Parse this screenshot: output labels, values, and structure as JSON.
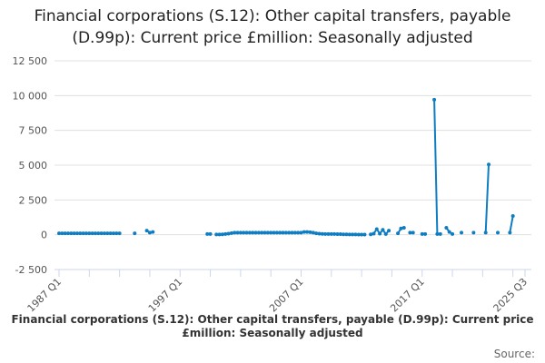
{
  "chart_data": {
    "type": "line",
    "title": "Financial corporations (S.12): Other capital transfers, payable (D.99p): Current price £million: Seasonally adjusted",
    "x_start": "1987 Q1",
    "x_end": "2025 Q3",
    "frequency": "quarterly",
    "x_tick_labels": [
      "1987 Q1",
      "1997 Q1",
      "2007 Q1",
      "2017 Q1",
      "2025 Q3"
    ],
    "ylim": [
      -2500,
      12500
    ],
    "y_ticks": [
      -2500,
      0,
      2500,
      5000,
      7500,
      10000,
      12500
    ],
    "y_tick_labels": [
      "-2 500",
      "0",
      "2 500",
      "5 000",
      "7 500",
      "10 000",
      "12 500"
    ],
    "grid": true,
    "series": [
      {
        "name": "Financial corporations (S.12): Other capital transfers, payable (D.99p): Current price £million: Seasonally adjusted",
        "color": "#0f7dc2",
        "values": [
          100,
          100,
          100,
          100,
          100,
          100,
          100,
          100,
          100,
          100,
          100,
          100,
          100,
          100,
          100,
          100,
          100,
          100,
          100,
          100,
          100,
          null,
          null,
          null,
          null,
          100,
          null,
          null,
          null,
          300,
          150,
          200,
          null,
          null,
          null,
          null,
          null,
          null,
          null,
          null,
          null,
          null,
          null,
          null,
          null,
          null,
          null,
          null,
          null,
          50,
          50,
          null,
          20,
          20,
          30,
          50,
          80,
          120,
          150,
          150,
          150,
          150,
          150,
          150,
          150,
          150,
          150,
          150,
          150,
          150,
          150,
          150,
          150,
          150,
          150,
          150,
          150,
          150,
          150,
          150,
          150,
          200,
          200,
          180,
          150,
          100,
          80,
          60,
          50,
          50,
          50,
          50,
          40,
          40,
          30,
          30,
          20,
          20,
          20,
          10,
          10,
          10,
          null,
          30,
          80,
          400,
          80,
          350,
          50,
          300,
          null,
          null,
          100,
          450,
          500,
          null,
          150,
          150,
          null,
          null,
          50,
          50,
          null,
          null,
          9700,
          50,
          50,
          null,
          500,
          200,
          50,
          null,
          null,
          150,
          null,
          null,
          null,
          150,
          null,
          null,
          null,
          150,
          5050,
          null,
          null,
          150,
          null,
          null,
          null,
          150,
          1350,
          null,
          null,
          null,
          null
        ]
      }
    ],
    "source_label": "Source:"
  }
}
